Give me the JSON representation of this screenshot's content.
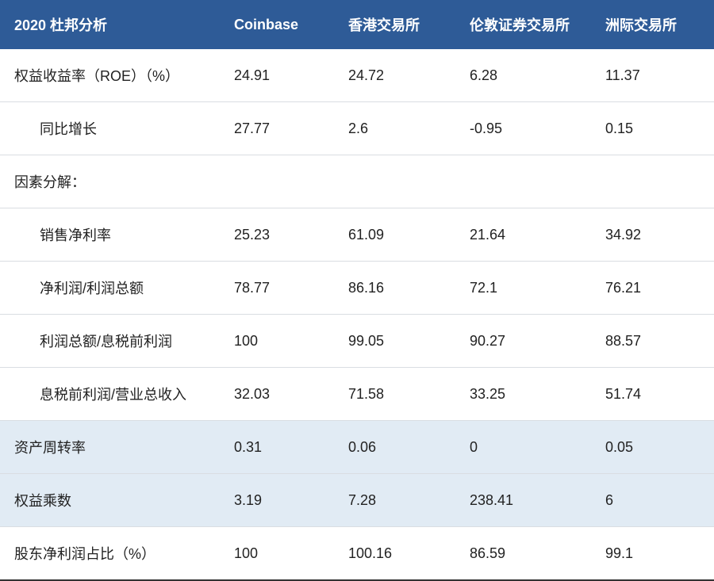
{
  "table": {
    "header": {
      "title": "2020 杜邦分析",
      "col1": "Coinbase",
      "col2": "香港交易所",
      "col3": "伦敦证券交易所",
      "col4": "洲际交易所"
    },
    "rows": [
      {
        "label": "权益收益率（ROE）（%）",
        "c1": "24.91",
        "c2": "24.72",
        "c3": "6.28",
        "c4": "11.37",
        "indent": false,
        "shaded": false
      },
      {
        "label": "同比增长",
        "c1": "27.77",
        "c2": "2.6",
        "c3": "-0.95",
        "c4": "0.15",
        "indent": true,
        "shaded": false
      },
      {
        "label": "因素分解：",
        "c1": "",
        "c2": "",
        "c3": "",
        "c4": "",
        "indent": false,
        "shaded": false,
        "section": true
      },
      {
        "label": "销售净利率",
        "c1": "25.23",
        "c2": "61.09",
        "c3": "21.64",
        "c4": "34.92",
        "indent": true,
        "shaded": false
      },
      {
        "label": "净利润/利润总额",
        "c1": "78.77",
        "c2": "86.16",
        "c3": "72.1",
        "c4": "76.21",
        "indent": true,
        "shaded": false
      },
      {
        "label": "利润总额/息税前利润",
        "c1": "100",
        "c2": "99.05",
        "c3": "90.27",
        "c4": "88.57",
        "indent": true,
        "shaded": false
      },
      {
        "label": "息税前利润/营业总收入",
        "c1": "32.03",
        "c2": "71.58",
        "c3": "33.25",
        "c4": "51.74",
        "indent": true,
        "shaded": false
      },
      {
        "label": "资产周转率",
        "c1": "0.31",
        "c2": "0.06",
        "c3": "0",
        "c4": "0.05",
        "indent": false,
        "shaded": true
      },
      {
        "label": "权益乘数",
        "c1": "3.19",
        "c2": "7.28",
        "c3": "238.41",
        "c4": "6",
        "indent": false,
        "shaded": true
      },
      {
        "label": "股东净利润占比（%）",
        "c1": "100",
        "c2": "100.16",
        "c3": "86.59",
        "c4": "99.1",
        "indent": false,
        "shaded": false,
        "last": true
      }
    ],
    "colors": {
      "header_bg": "#2e5b97",
      "header_text": "#ffffff",
      "shaded_bg": "#e1ebf4",
      "border": "#d9dde2",
      "text": "#222222"
    }
  }
}
